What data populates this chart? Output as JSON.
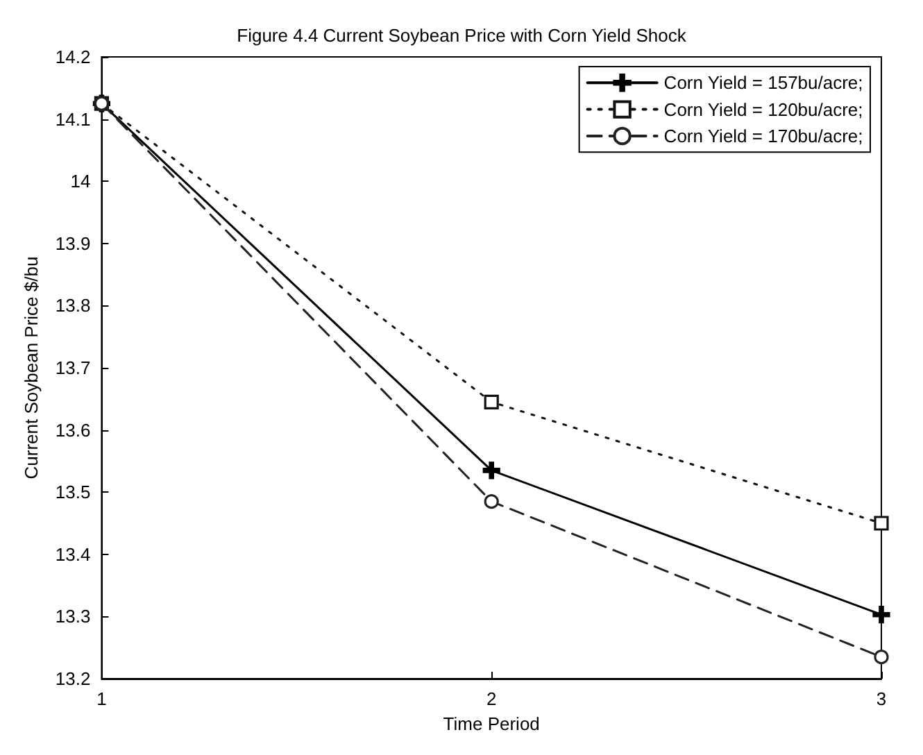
{
  "chart_data": {
    "type": "line",
    "title": "Figure 4.4 Current Soybean Price with Corn Yield Shock",
    "xlabel": "Time Period",
    "ylabel": "Current Soybean Price $/bu",
    "x": [
      1,
      2,
      3
    ],
    "series": [
      {
        "name": "Corn Yield = 157bu/acre;",
        "color": "#000000",
        "values": [
          14.125,
          13.535,
          13.303
        ],
        "marker": "cross",
        "line_style": "solid"
      },
      {
        "name": "Corn Yield = 120bu/acre;",
        "color": "#111111",
        "values": [
          14.125,
          13.645,
          13.45
        ],
        "marker": "square",
        "line_style": "dotted"
      },
      {
        "name": "Corn Yield = 170bu/acre;",
        "color": "#222222",
        "values": [
          14.125,
          13.485,
          13.235
        ],
        "marker": "circle",
        "line_style": "dashed"
      }
    ],
    "xlim": [
      1,
      3
    ],
    "xticks": [
      1,
      2,
      3
    ],
    "ylim": [
      13.2,
      14.2
    ],
    "yticks": [
      13.2,
      13.3,
      13.4,
      13.5,
      13.6,
      13.7,
      13.8,
      13.9,
      14,
      14.1,
      14.2
    ],
    "grid": false,
    "legend": "top right"
  }
}
